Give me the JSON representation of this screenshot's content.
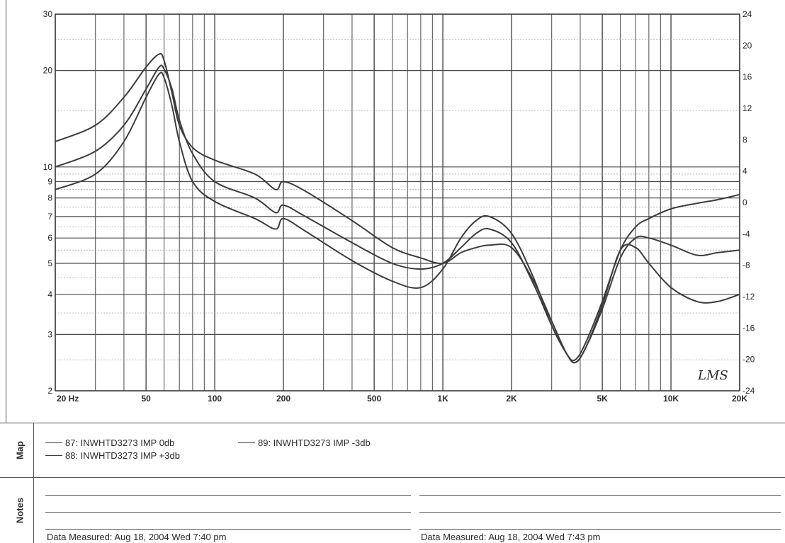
{
  "chart_data": {
    "type": "line",
    "x_scale": "log",
    "x_range": [
      20,
      20000
    ],
    "y_left_scale": "log",
    "y_left_range": [
      2,
      30
    ],
    "y_right_range": [
      -24,
      24
    ],
    "grid": true,
    "x_ticks": [
      {
        "value": 20,
        "label": "20 Hz"
      },
      {
        "value": 50,
        "label": "50"
      },
      {
        "value": 100,
        "label": "100"
      },
      {
        "value": 200,
        "label": "200"
      },
      {
        "value": 500,
        "label": "500"
      },
      {
        "value": 1000,
        "label": "1K"
      },
      {
        "value": 2000,
        "label": "2K"
      },
      {
        "value": 5000,
        "label": "5K"
      },
      {
        "value": 10000,
        "label": "10K"
      },
      {
        "value": 20000,
        "label": "20K"
      }
    ],
    "y_left_ticks": [
      {
        "value": 30,
        "label": "30"
      },
      {
        "value": 20,
        "label": "20"
      },
      {
        "value": 10,
        "label": "10"
      },
      {
        "value": 9,
        "label": "9"
      },
      {
        "value": 8,
        "label": "8"
      },
      {
        "value": 7,
        "label": "7"
      },
      {
        "value": 6,
        "label": "6"
      },
      {
        "value": 5,
        "label": "5"
      },
      {
        "value": 4,
        "label": "4"
      },
      {
        "value": 3,
        "label": "3"
      },
      {
        "value": 2,
        "label": "2"
      }
    ],
    "y_right_ticks": [
      {
        "value": 24,
        "label": "24"
      },
      {
        "value": 20,
        "label": "20"
      },
      {
        "value": 16,
        "label": "16"
      },
      {
        "value": 12,
        "label": "12"
      },
      {
        "value": 8,
        "label": "8"
      },
      {
        "value": 4,
        "label": "4"
      },
      {
        "value": 0,
        "label": "0"
      },
      {
        "value": -4,
        "label": "-4"
      },
      {
        "value": -8,
        "label": "-8"
      },
      {
        "value": -12,
        "label": "-12"
      },
      {
        "value": -16,
        "label": "-16"
      },
      {
        "value": -20,
        "label": "-20"
      },
      {
        "value": -24,
        "label": "-24"
      }
    ],
    "watermark": "LMS",
    "series": [
      {
        "name": "87: INWHTD3273  IMP  0db",
        "color": "#3c3c3c",
        "x": [
          20,
          30,
          40,
          50,
          57,
          60,
          65,
          70,
          80,
          100,
          150,
          185,
          200,
          250,
          400,
          600,
          800,
          1000,
          1200,
          1400,
          1600,
          2000,
          2500,
          3000,
          3500,
          3800,
          4200,
          5000,
          6000,
          7000,
          8000,
          10000,
          13000,
          16000,
          20000
        ],
        "y": [
          10.0,
          11.2,
          13.5,
          17.5,
          20.5,
          20.2,
          17.5,
          14.0,
          11.0,
          9.0,
          8.0,
          7.2,
          7.6,
          7.0,
          5.8,
          5.0,
          4.8,
          5.0,
          5.6,
          6.2,
          6.4,
          5.8,
          4.3,
          3.2,
          2.6,
          2.45,
          2.7,
          3.6,
          5.2,
          6.0,
          6.0,
          5.7,
          5.3,
          5.4,
          5.5
        ]
      },
      {
        "name": "88: INWHTD3273  IMP  +3db",
        "color": "#3c3c3c",
        "x": [
          20,
          30,
          40,
          50,
          57,
          60,
          65,
          70,
          80,
          100,
          150,
          185,
          200,
          250,
          400,
          600,
          800,
          1000,
          1200,
          1400,
          1600,
          2000,
          2500,
          3000,
          3500,
          3800,
          4200,
          5000,
          6000,
          7000,
          8000,
          10000,
          13000,
          16000,
          20000
        ],
        "y": [
          12.0,
          13.5,
          16.5,
          20.5,
          22.5,
          21.5,
          17.0,
          13.5,
          11.5,
          10.5,
          9.5,
          8.5,
          9.0,
          8.4,
          6.8,
          5.6,
          5.2,
          5.0,
          5.4,
          5.6,
          5.7,
          5.6,
          4.4,
          3.3,
          2.6,
          2.5,
          2.8,
          3.8,
          5.5,
          6.5,
          6.9,
          7.4,
          7.7,
          7.9,
          8.2
        ]
      },
      {
        "name": "89: INWHTD3273  IMP  -3db",
        "color": "#3c3c3c",
        "x": [
          20,
          30,
          40,
          50,
          57,
          60,
          65,
          70,
          80,
          100,
          150,
          185,
          200,
          250,
          400,
          600,
          800,
          1000,
          1200,
          1400,
          1600,
          2000,
          2500,
          3000,
          3500,
          3800,
          4200,
          5000,
          6000,
          7000,
          8000,
          10000,
          13000,
          16000,
          20000
        ],
        "y": [
          8.5,
          9.5,
          12.0,
          16.5,
          19.5,
          19.0,
          15.5,
          12.0,
          9.0,
          7.8,
          6.9,
          6.4,
          6.9,
          6.3,
          5.1,
          4.4,
          4.2,
          4.8,
          6.0,
          6.8,
          7.0,
          6.2,
          4.5,
          3.2,
          2.6,
          2.45,
          2.7,
          3.7,
          5.5,
          5.6,
          5.0,
          4.2,
          3.8,
          3.8,
          4.0
        ]
      }
    ]
  },
  "map": {
    "label": "Map",
    "legend": [
      {
        "text": "87: INWHTD3273   IMP    0db"
      },
      {
        "text": "88: INWHTD3273   IMP   +3db"
      },
      {
        "text": "89: INWHTD3273   IMP    -3db"
      }
    ]
  },
  "notes": {
    "label": "Notes",
    "left_measured": "Data Measured: Aug 18, 2004  Wed  7:40 pm",
    "right_measured": "Data Measured: Aug 18, 2004  Wed  7:43 pm"
  }
}
